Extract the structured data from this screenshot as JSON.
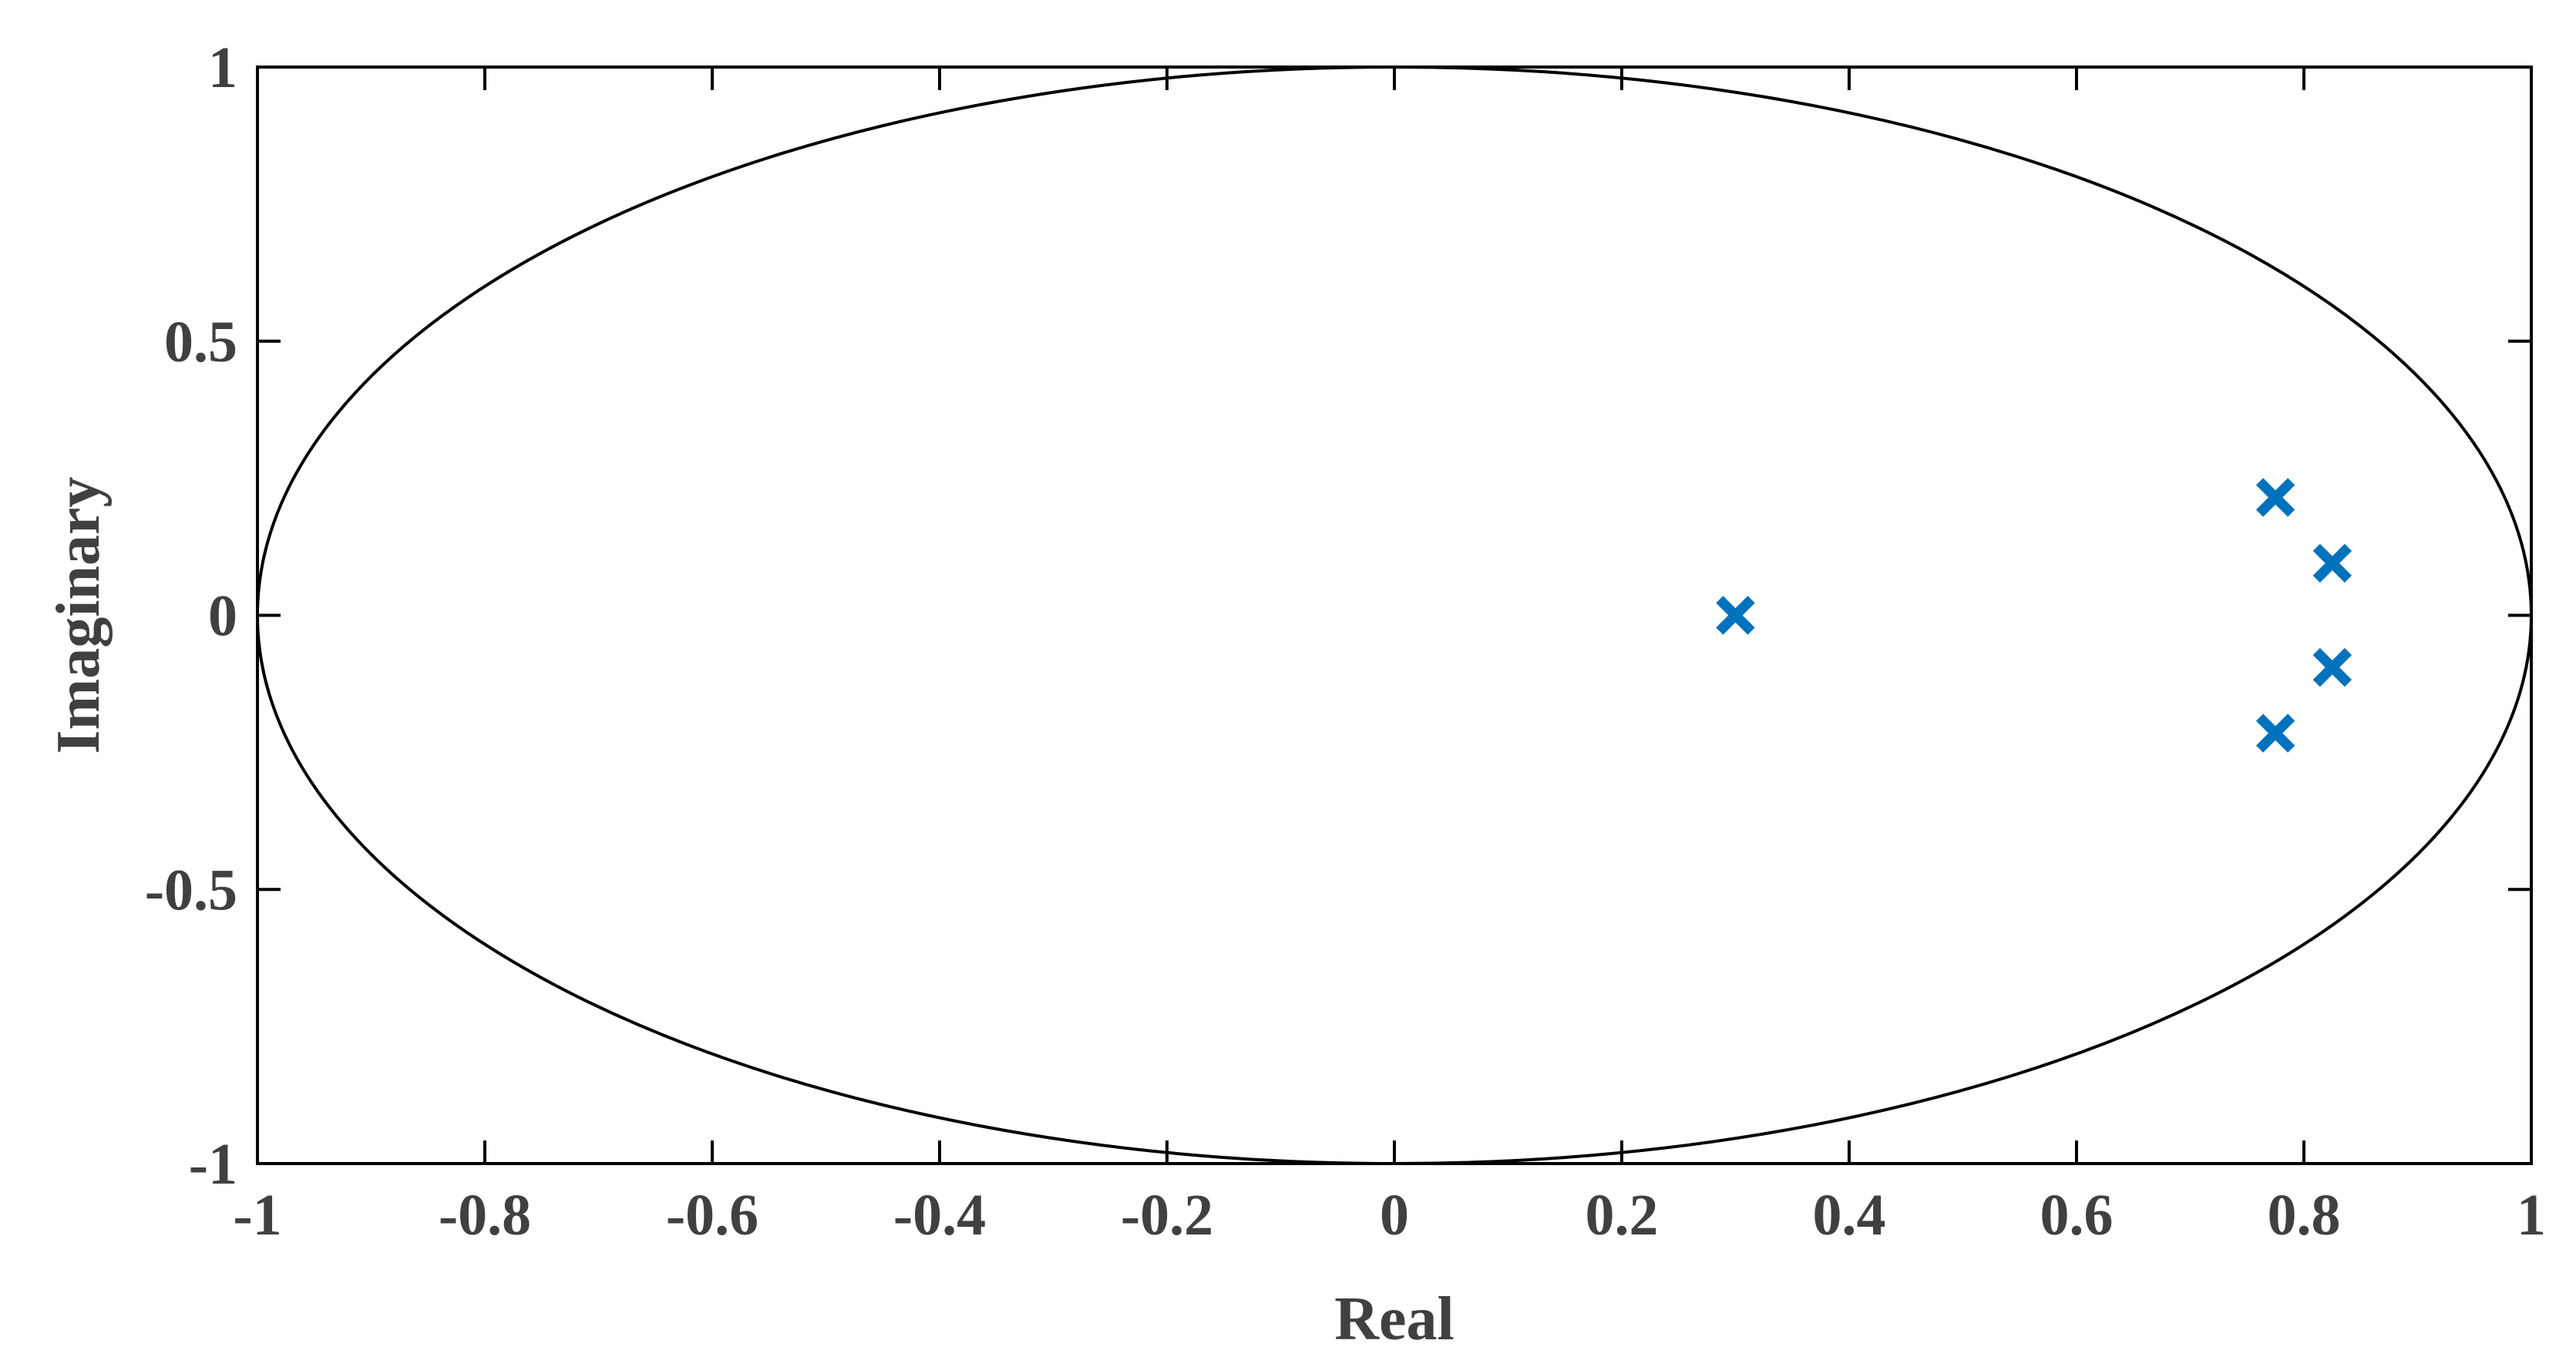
{
  "chart_data": {
    "type": "scatter",
    "title": "",
    "xlabel": "Real",
    "ylabel": "Imaginary",
    "xlim": [
      -1,
      1
    ],
    "ylim": [
      -1,
      1
    ],
    "x_ticks": [
      -1,
      -0.8,
      -0.6,
      -0.4,
      -0.2,
      0,
      0.2,
      0.4,
      0.6,
      0.8,
      1
    ],
    "x_tick_labels": [
      "-1",
      "-0.8",
      "-0.6",
      "-0.4",
      "-0.2",
      "0",
      "0.2",
      "0.4",
      "0.6",
      "0.8",
      "1"
    ],
    "y_ticks": [
      -1,
      -0.5,
      0,
      0.5,
      1
    ],
    "y_tick_labels": [
      "-1",
      "-0.5",
      "0",
      "0.5",
      "1"
    ],
    "grid": false,
    "legend": "none",
    "reference_curve": {
      "shape": "unit-circle",
      "center": [
        0,
        0
      ],
      "radius": 1,
      "color": "#000000"
    },
    "series": [
      {
        "marker": "x",
        "color": "#0072BD",
        "points": [
          {
            "x": 0.3,
            "y": 0.0
          },
          {
            "x": 0.775,
            "y": 0.215
          },
          {
            "x": 0.775,
            "y": -0.215
          },
          {
            "x": 0.825,
            "y": 0.095
          },
          {
            "x": 0.825,
            "y": -0.095
          }
        ]
      }
    ]
  }
}
